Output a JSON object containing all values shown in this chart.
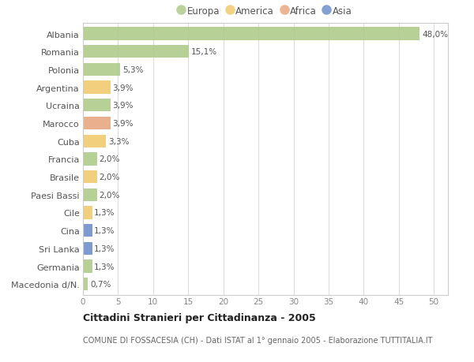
{
  "countries": [
    "Albania",
    "Romania",
    "Polonia",
    "Argentina",
    "Ucraina",
    "Marocco",
    "Cuba",
    "Francia",
    "Brasile",
    "Paesi Bassi",
    "Cile",
    "Cina",
    "Sri Lanka",
    "Germania",
    "Macedonia d/N."
  ],
  "values": [
    48.0,
    15.1,
    5.3,
    3.9,
    3.9,
    3.9,
    3.3,
    2.0,
    2.0,
    2.0,
    1.3,
    1.3,
    1.3,
    1.3,
    0.7
  ],
  "labels": [
    "48,0%",
    "15,1%",
    "5,3%",
    "3,9%",
    "3,9%",
    "3,9%",
    "3,3%",
    "2,0%",
    "2,0%",
    "2,0%",
    "1,3%",
    "1,3%",
    "1,3%",
    "1,3%",
    "0,7%"
  ],
  "continents": [
    "Europa",
    "Europa",
    "Europa",
    "America",
    "Europa",
    "Africa",
    "America",
    "Europa",
    "America",
    "Europa",
    "America",
    "Asia",
    "Asia",
    "Europa",
    "Europa"
  ],
  "continent_colors": {
    "Europa": "#aecb8b",
    "America": "#f0ca6e",
    "Africa": "#e8a882",
    "Asia": "#7090cc"
  },
  "legend_order": [
    "Europa",
    "America",
    "Africa",
    "Asia"
  ],
  "xlim": [
    0,
    52
  ],
  "xticks": [
    0,
    5,
    10,
    15,
    20,
    25,
    30,
    35,
    40,
    45,
    50
  ],
  "title": "Cittadini Stranieri per Cittadinanza - 2005",
  "subtitle": "COMUNE DI FOSSACESIA (CH) - Dati ISTAT al 1° gennaio 2005 - Elaborazione TUTTITALIA.IT",
  "background_color": "#ffffff",
  "grid_color": "#dddddd",
  "bar_height": 0.72
}
